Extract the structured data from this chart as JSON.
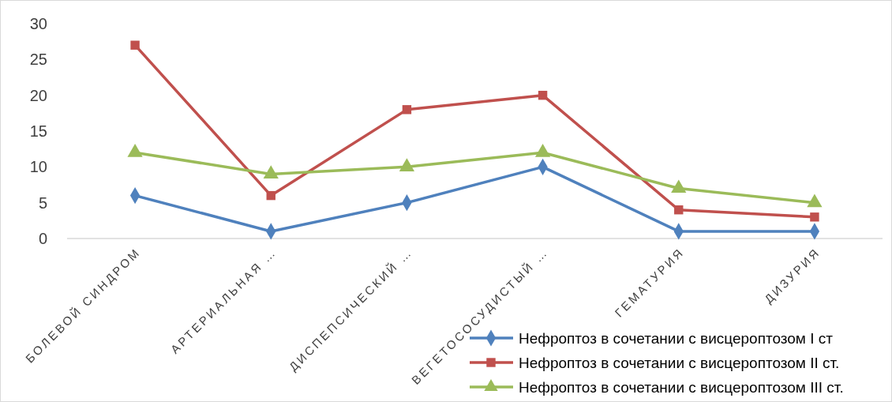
{
  "chart_data": {
    "type": "line",
    "categories": [
      "БОЛЕВОЙ СИНДРОМ",
      "АРТЕРИАЛЬНАЯ …",
      "ДИСПЕПСИЧЕСКИЙ …",
      "ВЕГЕТОСОСУДИСТЫЙ …",
      "ГЕМАТУРИЯ",
      "ДИЗУРИЯ"
    ],
    "series": [
      {
        "name": "Нефроптоз в сочетании с висцероптозом I ст",
        "color": "#4f81bd",
        "marker": "diamond",
        "values": [
          6,
          1,
          5,
          10,
          1,
          1
        ]
      },
      {
        "name": "Нефроптоз в сочетании с висцероптозом II ст.",
        "color": "#c0504d",
        "marker": "square",
        "values": [
          27,
          6,
          18,
          20,
          4,
          3
        ]
      },
      {
        "name": "Нефроптоз в сочетании с висцероптозом III ст.",
        "color": "#9bbb59",
        "marker": "triangle",
        "values": [
          12,
          9,
          10,
          12,
          7,
          5
        ]
      }
    ],
    "ylim": [
      0,
      30
    ],
    "yticks": [
      0,
      5,
      10,
      15,
      20,
      25,
      30
    ],
    "grid": false,
    "legend": "bottom right",
    "line_style": "solid"
  }
}
